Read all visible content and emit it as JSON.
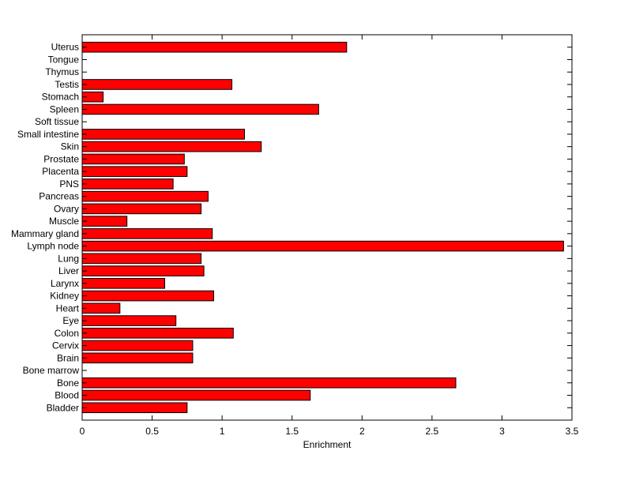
{
  "chart_data": {
    "type": "bar",
    "orientation": "horizontal",
    "xlabel": "Enrichment",
    "xlim": [
      0,
      3.5
    ],
    "xticks": [
      0,
      0.5,
      1,
      1.5,
      2,
      2.5,
      3,
      3.5
    ],
    "xtick_labels": [
      "0",
      "0.5",
      "1",
      "1.5",
      "2",
      "2.5",
      "3",
      "3.5"
    ],
    "grid": false,
    "bar_color": "#ff0000",
    "categories": [
      "Bladder",
      "Blood",
      "Bone",
      "Bone marrow",
      "Brain",
      "Cervix",
      "Colon",
      "Eye",
      "Heart",
      "Kidney",
      "Larynx",
      "Liver",
      "Lung",
      "Lymph node",
      "Mammary gland",
      "Muscle",
      "Ovary",
      "Pancreas",
      "PNS",
      "Placenta",
      "Prostate",
      "Skin",
      "Small intestine",
      "Soft tissue",
      "Spleen",
      "Stomach",
      "Testis",
      "Thymus",
      "Tongue",
      "Uterus"
    ],
    "values": [
      0.75,
      1.63,
      2.67,
      0,
      0.79,
      0.79,
      1.08,
      0.67,
      0.27,
      0.94,
      0.59,
      0.87,
      0.85,
      3.44,
      0.93,
      0.32,
      0.85,
      0.9,
      0.65,
      0.75,
      0.73,
      1.28,
      1.16,
      0,
      1.69,
      0.15,
      1.07,
      0,
      0,
      1.89
    ]
  }
}
